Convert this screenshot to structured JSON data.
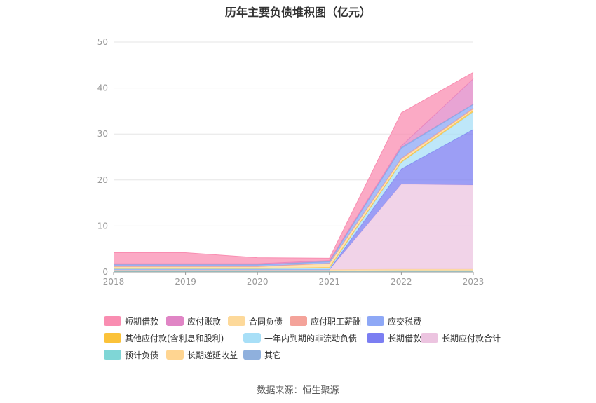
{
  "chart_data": {
    "type": "area",
    "stacked": true,
    "title": "历年主要负债堆积图（亿元）",
    "x": [
      "2018",
      "2019",
      "2020",
      "2021",
      "2022",
      "2023"
    ],
    "ylim": [
      0,
      50
    ],
    "yticks": [
      0,
      10,
      20,
      30,
      40,
      50
    ],
    "grid": true,
    "legend_position": "bottom",
    "series": [
      {
        "name": "预计负债",
        "color": "#7fd6d6",
        "values": [
          0.2,
          0.2,
          0.2,
          0.2,
          0.3,
          0.3
        ]
      },
      {
        "name": "长期递延收益",
        "color": "#ffd591",
        "values": [
          0.3,
          0.3,
          0.3,
          0.3,
          0.3,
          0.3
        ]
      },
      {
        "name": "长期应付款合计",
        "color": "#ecc4e0",
        "values": [
          0,
          0,
          0,
          0,
          18.5,
          18.3
        ]
      },
      {
        "name": "长期借款",
        "color": "#7b7ef2",
        "values": [
          0,
          0,
          0,
          0,
          3.3,
          12.1
        ]
      },
      {
        "name": "一年内到期的非流动负债",
        "color": "#a8dff7",
        "values": [
          0.2,
          0.2,
          0.2,
          0.3,
          1.4,
          3.8
        ]
      },
      {
        "name": "其他应付款(含利息和股利)",
        "color": "#fbc239",
        "values": [
          0.1,
          0.1,
          0.1,
          0.2,
          0.2,
          0.3
        ]
      },
      {
        "name": "合同负债",
        "color": "#fdd99a",
        "values": [
          0.3,
          0.3,
          0.3,
          0.8,
          0.5,
          0.3
        ]
      },
      {
        "name": "应付职工薪酬",
        "color": "#f4a39a",
        "values": [
          0.1,
          0.1,
          0.1,
          0.1,
          0.2,
          0.2
        ]
      },
      {
        "name": "应交税费",
        "color": "#8ea8f6",
        "values": [
          0.3,
          0.3,
          0.3,
          0.3,
          2.2,
          0.8
        ]
      },
      {
        "name": "其它",
        "color": "#8fb0dd",
        "values": [
          0.1,
          0.1,
          0.1,
          0.1,
          0.2,
          0.1
        ]
      },
      {
        "name": "应付账款",
        "color": "#e085c5",
        "values": [
          0.2,
          0.2,
          0.2,
          0.2,
          0.3,
          5.5
        ]
      },
      {
        "name": "短期借款",
        "color": "#f98db1",
        "values": [
          2.4,
          2.4,
          1.3,
          0.5,
          7.2,
          1.4
        ]
      }
    ],
    "legend": [
      "短期借款",
      "应付账款",
      "合同负债",
      "应付职工薪酬",
      "应交税费",
      "其他应付款(含利息和股利)",
      "一年内到期的非流动负债",
      "长期借款",
      "长期应付款合计",
      "预计负债",
      "长期递延收益",
      "其它"
    ]
  },
  "source": "数据来源：恒生聚源"
}
